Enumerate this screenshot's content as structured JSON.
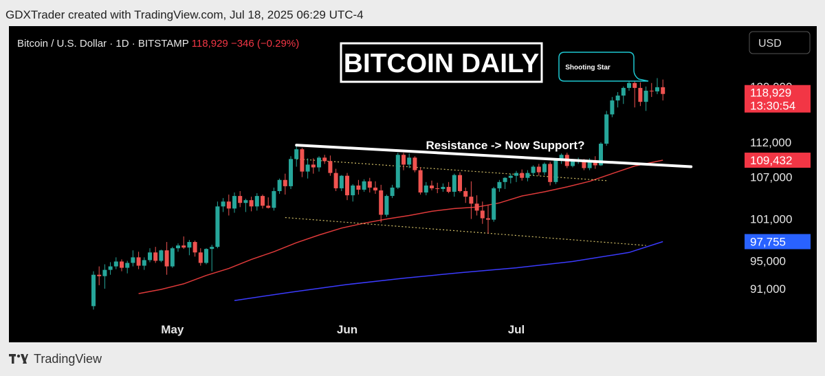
{
  "header": {
    "credit": "GDXTrader created with TradingView.com, Jul 18, 2025 06:29 UTC-4"
  },
  "symbol": {
    "name": "Bitcoin / U.S. Dollar · 1D · BITSTAMP",
    "price": "118,929",
    "change": "−346 (−0.29%)"
  },
  "currency_button": {
    "label": "USD"
  },
  "annotations": {
    "title_box": "BITCOIN DAILY",
    "callout": "Shooting Star",
    "resistance_label": "Resistance -> Now Support?"
  },
  "footer": {
    "brand": "TradingView"
  },
  "colors": {
    "up": "#26a69a",
    "down": "#ef5350",
    "ma50": "#e03a3a",
    "ma200": "#3b3bff",
    "badge_price": "#f23645",
    "badge_ma50": "#f23645",
    "badge_ma200": "#2962ff"
  },
  "chart_data": {
    "type": "candlestick",
    "instrument": "BTCUSD",
    "interval": "1D",
    "exchange": "BITSTAMP",
    "ylim": [
      88000,
      125000
    ],
    "y_ticks": [
      "91,000",
      "95,000",
      "101,000",
      "107,000",
      "112,000",
      "120,000"
    ],
    "y_tick_values": [
      91000,
      95000,
      101000,
      107000,
      112000,
      120000
    ],
    "x_ticks": [
      {
        "label": "May",
        "index": 14
      },
      {
        "label": "Jun",
        "index": 45
      },
      {
        "label": "Jul",
        "index": 75
      }
    ],
    "last_price": {
      "value": 118929,
      "label": "118,929",
      "countdown": "13:30:54"
    },
    "ma50_label": {
      "value": 109432,
      "label": "109,432"
    },
    "ma200_label": {
      "value": 97755,
      "label": "97,755"
    },
    "candles": [
      [
        88500,
        93500,
        88000,
        93000
      ],
      [
        93000,
        94200,
        91500,
        92800
      ],
      [
        92800,
        94500,
        91000,
        93700
      ],
      [
        93700,
        94800,
        93000,
        94200
      ],
      [
        94200,
        95500,
        93800,
        94900
      ],
      [
        94900,
        95200,
        93500,
        94000
      ],
      [
        94000,
        95000,
        93200,
        94700
      ],
      [
        94700,
        96500,
        94200,
        95500
      ],
      [
        95500,
        96300,
        93800,
        94300
      ],
      [
        94300,
        95500,
        93700,
        95100
      ],
      [
        95100,
        96800,
        94800,
        96200
      ],
      [
        96200,
        97000,
        94700,
        95000
      ],
      [
        95000,
        96600,
        94800,
        96500
      ],
      [
        96500,
        97700,
        93000,
        94200
      ],
      [
        94200,
        97000,
        94000,
        96800
      ],
      [
        96800,
        97500,
        96300,
        97200
      ],
      [
        97200,
        98500,
        96700,
        96900
      ],
      [
        96900,
        98000,
        95800,
        97700
      ],
      [
        97700,
        97900,
        95600,
        96200
      ],
      [
        96200,
        96800,
        94300,
        94700
      ],
      [
        94700,
        96800,
        94500,
        96700
      ],
      [
        96700,
        97300,
        93500,
        97000
      ],
      [
        97000,
        103500,
        96800,
        102800
      ],
      [
        102800,
        104000,
        102000,
        103500
      ],
      [
        103500,
        104500,
        101500,
        102500
      ],
      [
        102500,
        104800,
        101900,
        104300
      ],
      [
        104300,
        105000,
        102700,
        103300
      ],
      [
        103300,
        103900,
        102000,
        103700
      ],
      [
        103700,
        104200,
        102100,
        102800
      ],
      [
        102800,
        104700,
        102200,
        104300
      ],
      [
        104300,
        104500,
        102500,
        102900
      ],
      [
        102900,
        104100,
        102500,
        102600
      ],
      [
        102600,
        105500,
        102200,
        105000
      ],
      [
        105000,
        106800,
        104600,
        106600
      ],
      [
        106600,
        107500,
        104500,
        105700
      ],
      [
        105700,
        110000,
        105300,
        109600
      ],
      [
        109600,
        111500,
        108500,
        111000
      ],
      [
        111000,
        111200,
        107000,
        107800
      ],
      [
        107800,
        109700,
        106800,
        108800
      ],
      [
        108800,
        109700,
        107500,
        108400
      ],
      [
        108400,
        110000,
        107800,
        109800
      ],
      [
        109800,
        110200,
        108900,
        109300
      ],
      [
        109300,
        110100,
        107200,
        107600
      ],
      [
        107600,
        108200,
        105000,
        105400
      ],
      [
        105400,
        107300,
        105000,
        107200
      ],
      [
        107200,
        107600,
        103700,
        104400
      ],
      [
        104400,
        106000,
        103500,
        105800
      ],
      [
        105800,
        106600,
        104500,
        105200
      ],
      [
        105200,
        106700,
        104900,
        106400
      ],
      [
        106400,
        106900,
        104800,
        105500
      ],
      [
        105500,
        106400,
        104600,
        105100
      ],
      [
        105100,
        105900,
        100500,
        101600
      ],
      [
        101600,
        104500,
        101300,
        104300
      ],
      [
        104300,
        105900,
        104000,
        105500
      ],
      [
        105500,
        110500,
        105300,
        110200
      ],
      [
        110200,
        110500,
        108000,
        108800
      ],
      [
        108800,
        110400,
        108300,
        109800
      ],
      [
        109800,
        110000,
        107700,
        108000
      ],
      [
        108000,
        108400,
        104500,
        104800
      ],
      [
        104800,
        106300,
        104400,
        105800
      ],
      [
        105800,
        106500,
        105100,
        105400
      ],
      [
        105400,
        106200,
        104700,
        105300
      ],
      [
        105300,
        106100,
        104900,
        105600
      ],
      [
        105600,
        106300,
        104700,
        104900
      ],
      [
        104900,
        107500,
        104200,
        107300
      ],
      [
        107300,
        107700,
        104800,
        105000
      ],
      [
        105000,
        105500,
        103300,
        104200
      ],
      [
        104200,
        106400,
        101000,
        103200
      ],
      [
        103200,
        104400,
        101500,
        102200
      ],
      [
        102200,
        103500,
        100300,
        101100
      ],
      [
        101100,
        103000,
        98900,
        100900
      ],
      [
        100900,
        105600,
        100600,
        105400
      ],
      [
        105400,
        106600,
        104900,
        106300
      ],
      [
        106300,
        107000,
        105300,
        106900
      ],
      [
        106900,
        107500,
        106100,
        107200
      ],
      [
        107200,
        107900,
        106300,
        107600
      ],
      [
        107600,
        108100,
        106500,
        106900
      ],
      [
        106900,
        108000,
        106400,
        107600
      ],
      [
        107600,
        108700,
        107200,
        108500
      ],
      [
        108500,
        108900,
        107200,
        107700
      ],
      [
        107700,
        109100,
        107300,
        108900
      ],
      [
        108900,
        109200,
        105800,
        106300
      ],
      [
        106300,
        109700,
        106000,
        109600
      ],
      [
        109600,
        110400,
        108900,
        110200
      ],
      [
        110200,
        110500,
        108300,
        108600
      ],
      [
        108600,
        109600,
        108400,
        109300
      ],
      [
        109300,
        109800,
        108900,
        109400
      ],
      [
        109400,
        109600,
        108000,
        108300
      ],
      [
        108300,
        109700,
        108000,
        109400
      ],
      [
        109400,
        110000,
        108200,
        108700
      ],
      [
        108700,
        112000,
        108600,
        111800
      ],
      [
        111800,
        116500,
        111500,
        116000
      ],
      [
        116000,
        118500,
        115600,
        118000
      ],
      [
        118000,
        119200,
        117000,
        118700
      ],
      [
        118700,
        120000,
        117500,
        119800
      ],
      [
        119800,
        123200,
        119400,
        120500
      ],
      [
        120500,
        121300,
        117000,
        119800
      ],
      [
        119800,
        120600,
        117200,
        117800
      ],
      [
        117800,
        120000,
        116500,
        119400
      ],
      [
        119400,
        120500,
        118500,
        119300
      ],
      [
        119300,
        121200,
        118900,
        119900
      ],
      [
        119900,
        121000,
        118000,
        118929
      ]
    ],
    "ma50": [
      [
        8,
        90300
      ],
      [
        12,
        90900
      ],
      [
        16,
        91700
      ],
      [
        20,
        92900
      ],
      [
        24,
        93900
      ],
      [
        28,
        95200
      ],
      [
        32,
        96300
      ],
      [
        36,
        97600
      ],
      [
        40,
        98700
      ],
      [
        44,
        99700
      ],
      [
        48,
        100400
      ],
      [
        52,
        101000
      ],
      [
        56,
        101500
      ],
      [
        60,
        102100
      ],
      [
        64,
        102500
      ],
      [
        68,
        102700
      ],
      [
        72,
        103300
      ],
      [
        76,
        104300
      ],
      [
        80,
        104900
      ],
      [
        84,
        105600
      ],
      [
        88,
        106400
      ],
      [
        92,
        107500
      ],
      [
        96,
        108600
      ],
      [
        101,
        109432
      ]
    ],
    "ma200": [
      [
        25,
        89300
      ],
      [
        35,
        90500
      ],
      [
        45,
        91600
      ],
      [
        55,
        92500
      ],
      [
        65,
        93300
      ],
      [
        75,
        94000
      ],
      [
        85,
        94900
      ],
      [
        95,
        96200
      ],
      [
        101,
        97755
      ]
    ],
    "resistance_line": [
      [
        36,
        111600
      ],
      [
        106,
        108500
      ]
    ],
    "dotted_upper": [
      [
        36,
        109600
      ],
      [
        91,
        106500
      ]
    ],
    "dotted_lower": [
      [
        34,
        101200
      ],
      [
        98,
        97200
      ]
    ]
  }
}
